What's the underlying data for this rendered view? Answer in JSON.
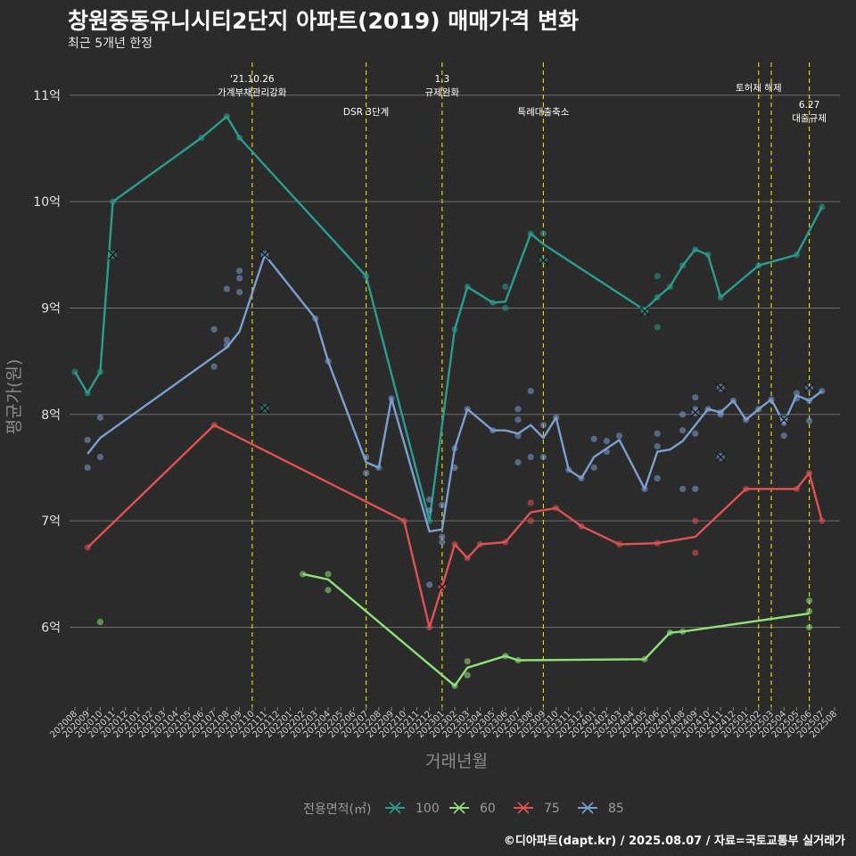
{
  "title": "창원중동유니시티2단지 아파트(2019) 매매가격 변화",
  "subtitle": "최근 5개년 한정",
  "caption": "©디아파트(dapt.kr) / 2025.08.07 / 자료=국토교통부 실거래가",
  "chart_data": {
    "type": "line",
    "xlabel": "거래년월",
    "ylabel": "평균가(원)",
    "x_start": "2020-08",
    "x_end": "2025-08",
    "ylim": [
      5.25,
      11.35
    ],
    "y_ticks": [
      {
        "value": 6,
        "label": "6억"
      },
      {
        "value": 7,
        "label": "7억"
      },
      {
        "value": 8,
        "label": "8억"
      },
      {
        "value": 9,
        "label": "9억"
      },
      {
        "value": 10,
        "label": "10억"
      },
      {
        "value": 11,
        "label": "11억"
      }
    ],
    "x_tick_labels": [
      "202008",
      "202009",
      "202010",
      "202011",
      "202012",
      "202101",
      "202102",
      "202103",
      "202104",
      "202105",
      "202106",
      "202107",
      "202108",
      "202109",
      "202110",
      "202111",
      "202112",
      "202201",
      "202202",
      "202203",
      "202204",
      "202205",
      "202206",
      "202207",
      "202208",
      "202209",
      "202210",
      "202211",
      "202212",
      "202301",
      "202302",
      "202303",
      "202304",
      "202305",
      "202306",
      "202307",
      "202308",
      "202309",
      "202310",
      "202311",
      "202312",
      "202401",
      "202402",
      "202403",
      "202404",
      "202405",
      "202406",
      "202407",
      "202408",
      "202409",
      "202410",
      "202411",
      "202412",
      "202501",
      "202502",
      "202503",
      "202504",
      "202505",
      "202506",
      "202507",
      "202508"
    ],
    "grid": true,
    "legend_position": "bottom",
    "legend_title": "전용면적(㎡)",
    "events": [
      {
        "date": "2021-10",
        "label": "'21.10.26\n가계부채관리강화",
        "level": 0
      },
      {
        "date": "2022-07",
        "label": "DSR 3단계",
        "level": 1
      },
      {
        "date": "2023-01",
        "label": "1.3\n규제완화",
        "level": 0
      },
      {
        "date": "2023-09",
        "label": "특례대출축소",
        "level": 1
      },
      {
        "date": "2025-02",
        "label": "토허제 해제",
        "level": 0
      },
      {
        "date": "2025-03",
        "label": "",
        "level": 0
      },
      {
        "date": "2025-06",
        "label": "6.27\n대출규제",
        "level": 2
      }
    ],
    "series": [
      {
        "name": "100",
        "color": "#2a9d8f",
        "line": [
          [
            "2020-08",
            8.4
          ],
          [
            "2020-09",
            8.2
          ],
          [
            "2020-10",
            8.4
          ],
          [
            "2020-11",
            10.0
          ],
          [
            "2021-06",
            10.6
          ],
          [
            "2021-08",
            10.8
          ],
          [
            "2021-09",
            10.6
          ],
          [
            "2022-07",
            9.3
          ],
          [
            "2022-12",
            7.0
          ],
          [
            "2023-02",
            8.8
          ],
          [
            "2023-03",
            9.2
          ],
          [
            "2023-05",
            9.05
          ],
          [
            "2023-06",
            9.06
          ],
          [
            "2023-08",
            9.7
          ],
          [
            "2023-09",
            9.6
          ],
          [
            "2024-05",
            8.98
          ],
          [
            "2024-06",
            9.1
          ],
          [
            "2024-07",
            9.2
          ],
          [
            "2024-08",
            9.4
          ],
          [
            "2024-09",
            9.55
          ],
          [
            "2024-10",
            9.5
          ],
          [
            "2024-11",
            9.1
          ],
          [
            "2025-02",
            9.4
          ],
          [
            "2025-05",
            9.5
          ],
          [
            "2025-07",
            9.95
          ]
        ],
        "points": [
          [
            "2020-08",
            8.4
          ],
          [
            "2020-09",
            8.2
          ],
          [
            "2020-10",
            8.4
          ],
          [
            "2020-11",
            10.0
          ],
          [
            "2021-06",
            10.6
          ],
          [
            "2021-08",
            10.8
          ],
          [
            "2021-09",
            10.6
          ],
          [
            "2022-07",
            9.3
          ],
          [
            "2022-12",
            7.0
          ],
          [
            "2023-02",
            8.8
          ],
          [
            "2023-03",
            9.2
          ],
          [
            "2023-05",
            9.05
          ],
          [
            "2023-06",
            9.0
          ],
          [
            "2023-06",
            9.2
          ],
          [
            "2023-08",
            9.7
          ],
          [
            "2023-09",
            9.7
          ],
          [
            "2024-05",
            8.98
          ],
          [
            "2024-06",
            9.1
          ],
          [
            "2024-06",
            9.3
          ],
          [
            "2024-06",
            8.82
          ],
          [
            "2024-07",
            9.2
          ],
          [
            "2024-08",
            9.4
          ],
          [
            "2024-09",
            9.55
          ],
          [
            "2024-10",
            9.5
          ],
          [
            "2024-11",
            9.1
          ],
          [
            "2025-02",
            9.4
          ],
          [
            "2025-05",
            9.5
          ],
          [
            "2025-07",
            9.95
          ]
        ],
        "cancelled": [
          [
            "2020-11",
            9.5
          ],
          [
            "2023-09",
            9.45
          ],
          [
            "2024-05",
            8.97
          ],
          [
            "2021-11",
            8.06
          ]
        ]
      },
      {
        "name": "60",
        "color": "#90e07a",
        "line": [
          [
            "2022-02",
            6.5
          ],
          [
            "2022-04",
            6.45
          ],
          [
            "2023-02",
            5.45
          ],
          [
            "2023-03",
            5.62
          ],
          [
            "2023-06",
            5.73
          ],
          [
            "2023-07",
            5.69
          ],
          [
            "2024-05",
            5.7
          ],
          [
            "2024-07",
            5.95
          ],
          [
            "2024-08",
            5.96
          ],
          [
            "2025-06",
            6.13
          ]
        ],
        "points": [
          [
            "2020-10",
            6.05
          ],
          [
            "2022-02",
            6.5
          ],
          [
            "2022-04",
            6.5
          ],
          [
            "2022-04",
            6.35
          ],
          [
            "2023-02",
            5.45
          ],
          [
            "2023-03",
            5.55
          ],
          [
            "2023-03",
            5.68
          ],
          [
            "2023-06",
            5.73
          ],
          [
            "2023-07",
            5.69
          ],
          [
            "2024-05",
            5.7
          ],
          [
            "2024-07",
            5.95
          ],
          [
            "2024-08",
            5.96
          ],
          [
            "2025-06",
            6.0
          ],
          [
            "2025-06",
            6.15
          ],
          [
            "2025-06",
            6.25
          ]
        ],
        "cancelled": []
      },
      {
        "name": "75",
        "color": "#e05252",
        "line": [
          [
            "2020-09",
            6.75
          ],
          [
            "2021-07",
            7.9
          ],
          [
            "2022-10",
            7.0
          ],
          [
            "2022-12",
            6.0
          ],
          [
            "2023-01",
            6.38
          ],
          [
            "2023-02",
            6.78
          ],
          [
            "2023-03",
            6.65
          ],
          [
            "2023-04",
            6.78
          ],
          [
            "2023-06",
            6.8
          ],
          [
            "2023-08",
            7.08
          ],
          [
            "2023-10",
            7.12
          ],
          [
            "2023-12",
            6.95
          ],
          [
            "2024-03",
            6.78
          ],
          [
            "2024-06",
            6.79
          ],
          [
            "2024-09",
            6.85
          ],
          [
            "2025-01",
            7.3
          ],
          [
            "2025-05",
            7.3
          ],
          [
            "2025-06",
            7.45
          ],
          [
            "2025-07",
            7.0
          ]
        ],
        "points": [
          [
            "2020-09",
            6.75
          ],
          [
            "2021-07",
            7.9
          ],
          [
            "2022-10",
            7.0
          ],
          [
            "2022-12",
            6.0
          ],
          [
            "2023-01",
            6.38
          ],
          [
            "2023-02",
            6.78
          ],
          [
            "2023-03",
            6.65
          ],
          [
            "2023-04",
            6.78
          ],
          [
            "2023-06",
            6.8
          ],
          [
            "2023-08",
            7.0
          ],
          [
            "2023-08",
            7.17
          ],
          [
            "2023-10",
            7.12
          ],
          [
            "2023-12",
            6.95
          ],
          [
            "2024-03",
            6.78
          ],
          [
            "2024-06",
            6.79
          ],
          [
            "2024-09",
            7.0
          ],
          [
            "2024-09",
            6.7
          ],
          [
            "2025-01",
            7.3
          ],
          [
            "2025-05",
            7.3
          ],
          [
            "2025-06",
            7.45
          ],
          [
            "2025-07",
            7.0
          ]
        ],
        "cancelled": [
          [
            "2023-01",
            6.38
          ]
        ]
      },
      {
        "name": "85",
        "color": "#7b9fd0",
        "line": [
          [
            "2020-09",
            7.63
          ],
          [
            "2020-10",
            7.78
          ],
          [
            "2021-08",
            8.63
          ],
          [
            "2021-09",
            8.78
          ],
          [
            "2021-11",
            9.5
          ],
          [
            "2022-03",
            8.9
          ],
          [
            "2022-04",
            8.5
          ],
          [
            "2022-07",
            7.55
          ],
          [
            "2022-08",
            7.5
          ],
          [
            "2022-09",
            8.15
          ],
          [
            "2022-12",
            6.9
          ],
          [
            "2023-01",
            6.92
          ],
          [
            "2023-02",
            7.68
          ],
          [
            "2023-03",
            8.05
          ],
          [
            "2023-05",
            7.85
          ],
          [
            "2023-06",
            7.85
          ],
          [
            "2023-07",
            7.82
          ],
          [
            "2023-08",
            7.9
          ],
          [
            "2023-09",
            7.78
          ],
          [
            "2023-10",
            7.97
          ],
          [
            "2023-11",
            7.48
          ],
          [
            "2023-12",
            7.4
          ],
          [
            "2024-01",
            7.6
          ],
          [
            "2024-03",
            7.76
          ],
          [
            "2024-05",
            7.3
          ],
          [
            "2024-06",
            7.65
          ],
          [
            "2024-07",
            7.67
          ],
          [
            "2024-08",
            7.75
          ],
          [
            "2024-09",
            7.9
          ],
          [
            "2024-10",
            8.05
          ],
          [
            "2024-11",
            8.02
          ],
          [
            "2024-12",
            8.13
          ],
          [
            "2025-01",
            7.95
          ],
          [
            "2025-02",
            8.05
          ],
          [
            "2025-03",
            8.14
          ],
          [
            "2025-04",
            7.92
          ],
          [
            "2025-05",
            8.18
          ],
          [
            "2025-06",
            8.13
          ],
          [
            "2025-07",
            8.22
          ]
        ],
        "points": [
          [
            "2020-09",
            7.5
          ],
          [
            "2020-09",
            7.76
          ],
          [
            "2020-10",
            7.6
          ],
          [
            "2020-10",
            7.97
          ],
          [
            "2021-07",
            8.45
          ],
          [
            "2021-07",
            8.8
          ],
          [
            "2021-08",
            8.65
          ],
          [
            "2021-08",
            8.7
          ],
          [
            "2021-08",
            9.18
          ],
          [
            "2021-09",
            9.15
          ],
          [
            "2021-09",
            9.28
          ],
          [
            "2021-09",
            9.35
          ],
          [
            "2022-03",
            8.9
          ],
          [
            "2022-04",
            8.5
          ],
          [
            "2022-07",
            7.6
          ],
          [
            "2022-07",
            7.45
          ],
          [
            "2022-08",
            7.5
          ],
          [
            "2022-09",
            8.15
          ],
          [
            "2022-12",
            6.4
          ],
          [
            "2022-12",
            7.1
          ],
          [
            "2022-12",
            7.2
          ],
          [
            "2023-01",
            6.8
          ],
          [
            "2023-01",
            6.85
          ],
          [
            "2023-01",
            7.15
          ],
          [
            "2023-02",
            7.5
          ],
          [
            "2023-02",
            7.68
          ],
          [
            "2023-03",
            8.05
          ],
          [
            "2023-05",
            7.85
          ],
          [
            "2023-07",
            7.55
          ],
          [
            "2023-07",
            7.8
          ],
          [
            "2023-07",
            7.95
          ],
          [
            "2023-07",
            8.05
          ],
          [
            "2023-08",
            7.6
          ],
          [
            "2023-08",
            8.22
          ],
          [
            "2023-09",
            7.6
          ],
          [
            "2023-09",
            7.9
          ],
          [
            "2023-10",
            7.97
          ],
          [
            "2023-11",
            7.48
          ],
          [
            "2023-12",
            7.4
          ],
          [
            "2024-01",
            7.5
          ],
          [
            "2024-01",
            7.77
          ],
          [
            "2024-02",
            7.65
          ],
          [
            "2024-02",
            7.75
          ],
          [
            "2024-03",
            7.8
          ],
          [
            "2024-05",
            7.3
          ],
          [
            "2024-06",
            7.4
          ],
          [
            "2024-06",
            7.7
          ],
          [
            "2024-06",
            7.82
          ],
          [
            "2024-08",
            7.3
          ],
          [
            "2024-08",
            7.85
          ],
          [
            "2024-08",
            8.0
          ],
          [
            "2024-09",
            7.3
          ],
          [
            "2024-09",
            7.82
          ],
          [
            "2024-09",
            8.05
          ],
          [
            "2024-09",
            8.16
          ],
          [
            "2024-10",
            8.05
          ],
          [
            "2024-11",
            8.0
          ],
          [
            "2024-11",
            8.02
          ],
          [
            "2024-12",
            8.13
          ],
          [
            "2025-01",
            7.95
          ],
          [
            "2025-02",
            8.05
          ],
          [
            "2025-03",
            8.14
          ],
          [
            "2025-04",
            7.8
          ],
          [
            "2025-04",
            7.92
          ],
          [
            "2025-05",
            8.15
          ],
          [
            "2025-05",
            8.2
          ],
          [
            "2025-06",
            7.94
          ],
          [
            "2025-06",
            8.13
          ],
          [
            "2025-07",
            8.22
          ]
        ],
        "cancelled": [
          [
            "2021-11",
            9.5
          ],
          [
            "2024-09",
            8.02
          ],
          [
            "2024-11",
            8.25
          ],
          [
            "2025-06",
            8.25
          ],
          [
            "2025-04",
            7.95
          ],
          [
            "2024-11",
            7.6
          ]
        ]
      }
    ]
  }
}
